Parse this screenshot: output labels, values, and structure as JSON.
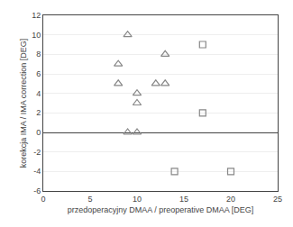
{
  "chart_data": {
    "type": "scatter",
    "xlabel": "przedoperacyjny DMAA / preoperative DMAA [DEG]",
    "ylabel": "korekcja IMA / IMA correction [DEG]",
    "series": [
      {
        "x": [
          9,
          8,
          8,
          10,
          10,
          10,
          9,
          13,
          12,
          13
        ],
        "values": [
          10,
          7,
          5,
          4,
          3,
          0,
          0,
          8,
          5,
          5
        ],
        "marker": "triangle",
        "color": "#888888"
      },
      {
        "x": [
          17,
          17,
          14,
          20
        ],
        "values": [
          9,
          2,
          -4,
          -4
        ],
        "marker": "square",
        "color": "#888888"
      }
    ],
    "xlim": [
      0,
      25
    ],
    "ylim": [
      -6,
      12
    ],
    "xticks": [
      0,
      5,
      10,
      15,
      20,
      25
    ],
    "yticks": [
      -6,
      -4,
      -2,
      0,
      2,
      4,
      6,
      8,
      10,
      12
    ],
    "grid": "y"
  }
}
